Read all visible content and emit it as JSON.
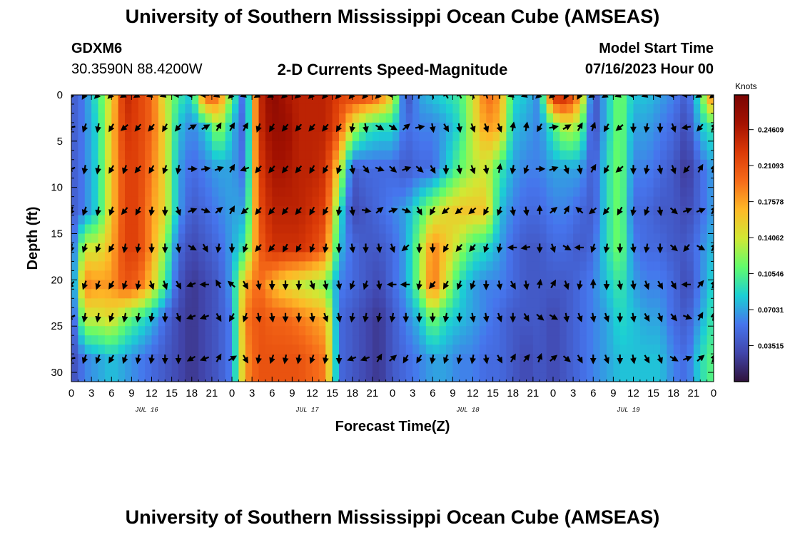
{
  "page": {
    "title_top": "University of Southern Mississippi Ocean Cube (AMSEAS)",
    "title_bottom": "University of Southern Mississippi Ocean Cube (AMSEAS)",
    "station_id": "GDXM6",
    "station_coords": "30.3590N  88.4200W",
    "model_start_label": "Model Start Time",
    "model_start_value": "07/16/2023 Hour 00"
  },
  "chart_data": {
    "type": "heatmap",
    "title": "2-D Currents Speed-Magnitude",
    "xlabel": "Forecast Time(Z)",
    "ylabel": "Depth (ft)",
    "x_range_hours": [
      0,
      96
    ],
    "ylim": [
      0,
      31
    ],
    "y_inverted": true,
    "x_ticks": [
      {
        "hour": 0,
        "label": "0"
      },
      {
        "hour": 3,
        "label": "3"
      },
      {
        "hour": 6,
        "label": "6"
      },
      {
        "hour": 9,
        "label": "9"
      },
      {
        "hour": 12,
        "label": "12"
      },
      {
        "hour": 15,
        "label": "15"
      },
      {
        "hour": 18,
        "label": "18"
      },
      {
        "hour": 21,
        "label": "21"
      },
      {
        "hour": 24,
        "label": "0"
      },
      {
        "hour": 27,
        "label": "3"
      },
      {
        "hour": 30,
        "label": "6"
      },
      {
        "hour": 33,
        "label": "9"
      },
      {
        "hour": 36,
        "label": "12"
      },
      {
        "hour": 39,
        "label": "15"
      },
      {
        "hour": 42,
        "label": "18"
      },
      {
        "hour": 45,
        "label": "21"
      },
      {
        "hour": 48,
        "label": "0"
      },
      {
        "hour": 51,
        "label": "3"
      },
      {
        "hour": 54,
        "label": "6"
      },
      {
        "hour": 57,
        "label": "9"
      },
      {
        "hour": 60,
        "label": "12"
      },
      {
        "hour": 63,
        "label": "15"
      },
      {
        "hour": 66,
        "label": "18"
      },
      {
        "hour": 69,
        "label": "21"
      },
      {
        "hour": 72,
        "label": "0"
      },
      {
        "hour": 75,
        "label": "3"
      },
      {
        "hour": 78,
        "label": "6"
      },
      {
        "hour": 81,
        "label": "9"
      },
      {
        "hour": 84,
        "label": "12"
      },
      {
        "hour": 87,
        "label": "15"
      },
      {
        "hour": 90,
        "label": "18"
      },
      {
        "hour": 93,
        "label": "21"
      },
      {
        "hour": 96,
        "label": "0"
      }
    ],
    "date_labels": [
      {
        "hour": 12,
        "label": "JUL 16"
      },
      {
        "hour": 36,
        "label": "JUL 17"
      },
      {
        "hour": 60,
        "label": "JUL 18"
      },
      {
        "hour": 84,
        "label": "JUL 19"
      }
    ],
    "y_ticks": [
      0,
      5,
      10,
      15,
      20,
      25,
      30
    ],
    "colorbar": {
      "title": "Knots",
      "range": [
        0.0,
        0.28
      ],
      "ticks": [
        {
          "value": 0.03515,
          "label": "0.03515"
        },
        {
          "value": 0.07031,
          "label": "0.07031"
        },
        {
          "value": 0.10546,
          "label": "0.10546"
        },
        {
          "value": 0.14062,
          "label": "0.14062"
        },
        {
          "value": 0.17578,
          "label": "0.17578"
        },
        {
          "value": 0.21093,
          "label": "0.21093"
        },
        {
          "value": 0.24609,
          "label": "0.24609"
        }
      ]
    },
    "depth_levels": [
      0,
      3.5,
      8,
      12.5,
      16.5,
      20.5,
      24,
      28.5
    ],
    "times": [
      0,
      2,
      4,
      6,
      8,
      10,
      12,
      14,
      16,
      18,
      20,
      22,
      24,
      26,
      28,
      30,
      32,
      34,
      36,
      38,
      40,
      42,
      44,
      46,
      48,
      50,
      52,
      54,
      56,
      58,
      60,
      62,
      64,
      66,
      68,
      70,
      72,
      74,
      76,
      78,
      80,
      82,
      84,
      86,
      88,
      90,
      92,
      94,
      96
    ],
    "speed": [
      [
        0.04,
        0.06,
        0.1,
        0.15,
        0.24,
        0.22,
        0.2,
        0.14,
        0.1,
        0.08,
        0.21,
        0.2,
        0.11,
        0.04,
        0.23,
        0.27,
        0.25,
        0.24,
        0.24,
        0.24,
        0.22,
        0.22,
        0.22,
        0.2,
        0.15,
        0.03,
        0.07,
        0.08,
        0.09,
        0.1,
        0.14,
        0.2,
        0.18,
        0.09,
        0.08,
        0.06,
        0.24,
        0.24,
        0.18,
        0.03,
        0.08,
        0.12,
        0.08,
        0.08,
        0.07,
        0.06,
        0.04,
        0.1,
        0.21
      ],
      [
        0.04,
        0.06,
        0.09,
        0.16,
        0.23,
        0.22,
        0.2,
        0.15,
        0.08,
        0.06,
        0.08,
        0.13,
        0.08,
        0.04,
        0.23,
        0.26,
        0.26,
        0.24,
        0.24,
        0.24,
        0.21,
        0.14,
        0.1,
        0.09,
        0.09,
        0.05,
        0.06,
        0.06,
        0.07,
        0.09,
        0.14,
        0.18,
        0.17,
        0.08,
        0.07,
        0.06,
        0.1,
        0.14,
        0.12,
        0.03,
        0.08,
        0.12,
        0.07,
        0.07,
        0.06,
        0.05,
        0.03,
        0.08,
        0.1
      ],
      [
        0.04,
        0.06,
        0.09,
        0.16,
        0.22,
        0.22,
        0.19,
        0.15,
        0.07,
        0.05,
        0.06,
        0.07,
        0.07,
        0.05,
        0.22,
        0.25,
        0.25,
        0.24,
        0.24,
        0.23,
        0.15,
        0.04,
        0.05,
        0.05,
        0.05,
        0.04,
        0.05,
        0.05,
        0.08,
        0.11,
        0.13,
        0.14,
        0.1,
        0.07,
        0.06,
        0.06,
        0.07,
        0.07,
        0.07,
        0.04,
        0.09,
        0.12,
        0.06,
        0.06,
        0.05,
        0.04,
        0.02,
        0.05,
        0.07
      ],
      [
        0.04,
        0.06,
        0.09,
        0.16,
        0.22,
        0.22,
        0.18,
        0.15,
        0.07,
        0.04,
        0.05,
        0.06,
        0.07,
        0.07,
        0.21,
        0.24,
        0.24,
        0.24,
        0.23,
        0.22,
        0.1,
        0.03,
        0.04,
        0.05,
        0.06,
        0.07,
        0.1,
        0.13,
        0.15,
        0.16,
        0.16,
        0.16,
        0.08,
        0.06,
        0.05,
        0.05,
        0.06,
        0.06,
        0.05,
        0.04,
        0.09,
        0.12,
        0.05,
        0.05,
        0.04,
        0.04,
        0.03,
        0.05,
        0.07
      ],
      [
        0.04,
        0.14,
        0.14,
        0.17,
        0.22,
        0.22,
        0.18,
        0.12,
        0.05,
        0.03,
        0.04,
        0.05,
        0.07,
        0.1,
        0.2,
        0.23,
        0.23,
        0.23,
        0.22,
        0.2,
        0.08,
        0.05,
        0.04,
        0.04,
        0.05,
        0.07,
        0.12,
        0.19,
        0.16,
        0.13,
        0.1,
        0.09,
        0.07,
        0.05,
        0.04,
        0.04,
        0.05,
        0.05,
        0.04,
        0.05,
        0.09,
        0.12,
        0.06,
        0.05,
        0.05,
        0.04,
        0.04,
        0.06,
        0.08
      ],
      [
        0.04,
        0.19,
        0.18,
        0.18,
        0.21,
        0.2,
        0.16,
        0.1,
        0.04,
        0.02,
        0.03,
        0.04,
        0.07,
        0.17,
        0.2,
        0.17,
        0.15,
        0.14,
        0.13,
        0.12,
        0.06,
        0.05,
        0.04,
        0.03,
        0.05,
        0.07,
        0.12,
        0.2,
        0.14,
        0.09,
        0.07,
        0.06,
        0.06,
        0.05,
        0.04,
        0.04,
        0.04,
        0.04,
        0.05,
        0.06,
        0.08,
        0.1,
        0.07,
        0.06,
        0.06,
        0.05,
        0.03,
        0.06,
        0.09
      ],
      [
        0.03,
        0.14,
        0.14,
        0.15,
        0.12,
        0.1,
        0.08,
        0.05,
        0.03,
        0.02,
        0.03,
        0.04,
        0.06,
        0.19,
        0.21,
        0.2,
        0.2,
        0.19,
        0.18,
        0.17,
        0.05,
        0.04,
        0.03,
        0.02,
        0.04,
        0.06,
        0.08,
        0.12,
        0.09,
        0.08,
        0.07,
        0.06,
        0.05,
        0.04,
        0.04,
        0.04,
        0.03,
        0.04,
        0.05,
        0.06,
        0.07,
        0.09,
        0.08,
        0.07,
        0.07,
        0.05,
        0.04,
        0.07,
        0.1
      ],
      [
        0.03,
        0.06,
        0.07,
        0.08,
        0.07,
        0.06,
        0.05,
        0.04,
        0.03,
        0.02,
        0.03,
        0.04,
        0.06,
        0.18,
        0.21,
        0.21,
        0.21,
        0.21,
        0.2,
        0.19,
        0.05,
        0.04,
        0.03,
        0.02,
        0.04,
        0.05,
        0.06,
        0.07,
        0.07,
        0.06,
        0.06,
        0.05,
        0.05,
        0.04,
        0.03,
        0.04,
        0.03,
        0.04,
        0.05,
        0.06,
        0.07,
        0.08,
        0.08,
        0.08,
        0.08,
        0.06,
        0.05,
        0.09,
        0.11
      ]
    ],
    "arrow_dir_deg": [
      [
        240,
        240,
        225,
        225,
        210,
        210,
        200,
        200,
        180,
        180,
        180,
        200,
        225,
        200,
        210,
        210,
        220,
        220,
        225,
        230,
        230,
        230,
        230,
        225,
        180,
        90,
        80,
        100,
        120,
        120,
        110,
        110,
        90,
        200,
        200,
        220,
        220,
        240,
        240,
        210,
        210,
        200,
        180,
        200,
        190,
        180,
        180,
        210,
        220
      ],
      [
        190,
        250,
        260,
        240,
        220,
        230,
        230,
        240,
        230,
        30,
        30,
        60,
        60,
        60,
        250,
        240,
        230,
        230,
        230,
        230,
        240,
        260,
        280,
        330,
        330,
        40,
        10,
        280,
        300,
        280,
        290,
        290,
        290,
        80,
        80,
        240,
        10,
        30,
        60,
        70,
        240,
        220,
        270,
        260,
        270,
        290,
        190,
        230,
        60
      ],
      [
        200,
        260,
        260,
        240,
        250,
        230,
        240,
        250,
        260,
        0,
        10,
        20,
        60,
        200,
        230,
        230,
        230,
        230,
        240,
        240,
        250,
        280,
        310,
        340,
        320,
        20,
        320,
        300,
        270,
        280,
        290,
        280,
        80,
        260,
        250,
        0,
        20,
        290,
        280,
        60,
        240,
        220,
        270,
        260,
        280,
        290,
        230,
        60,
        70
      ],
      [
        250,
        250,
        260,
        250,
        230,
        240,
        260,
        270,
        290,
        20,
        340,
        40,
        60,
        220,
        230,
        230,
        230,
        230,
        240,
        240,
        260,
        280,
        350,
        40,
        20,
        340,
        300,
        240,
        220,
        220,
        220,
        240,
        250,
        280,
        280,
        90,
        40,
        60,
        140,
        220,
        230,
        240,
        260,
        250,
        280,
        320,
        20,
        20,
        60
      ],
      [
        260,
        250,
        250,
        240,
        260,
        260,
        270,
        270,
        280,
        330,
        300,
        260,
        270,
        250,
        230,
        230,
        240,
        240,
        250,
        260,
        270,
        280,
        270,
        280,
        290,
        220,
        270,
        270,
        240,
        230,
        230,
        250,
        260,
        180,
        190,
        270,
        290,
        330,
        180,
        250,
        260,
        270,
        280,
        260,
        270,
        320,
        230,
        330,
        60
      ],
      [
        230,
        250,
        250,
        240,
        250,
        260,
        290,
        290,
        300,
        200,
        180,
        120,
        140,
        300,
        280,
        270,
        270,
        270,
        290,
        280,
        280,
        250,
        250,
        280,
        180,
        180,
        260,
        230,
        240,
        250,
        250,
        270,
        280,
        300,
        280,
        80,
        60,
        290,
        260,
        90,
        270,
        280,
        280,
        290,
        300,
        300,
        180,
        50,
        70
      ],
      [
        200,
        260,
        260,
        250,
        260,
        260,
        260,
        270,
        290,
        200,
        200,
        300,
        240,
        250,
        280,
        280,
        270,
        270,
        280,
        290,
        280,
        260,
        260,
        260,
        260,
        270,
        270,
        270,
        260,
        270,
        280,
        280,
        290,
        270,
        300,
        320,
        330,
        280,
        290,
        280,
        290,
        270,
        280,
        300,
        290,
        310,
        340,
        60,
        80
      ],
      [
        190,
        250,
        250,
        240,
        250,
        260,
        260,
        270,
        270,
        210,
        200,
        60,
        30,
        300,
        260,
        250,
        260,
        260,
        250,
        260,
        270,
        200,
        200,
        60,
        40,
        240,
        240,
        260,
        250,
        260,
        260,
        280,
        300,
        60,
        50,
        70,
        40,
        320,
        300,
        270,
        290,
        270,
        280,
        300,
        290,
        330,
        20,
        40,
        70
      ]
    ]
  }
}
